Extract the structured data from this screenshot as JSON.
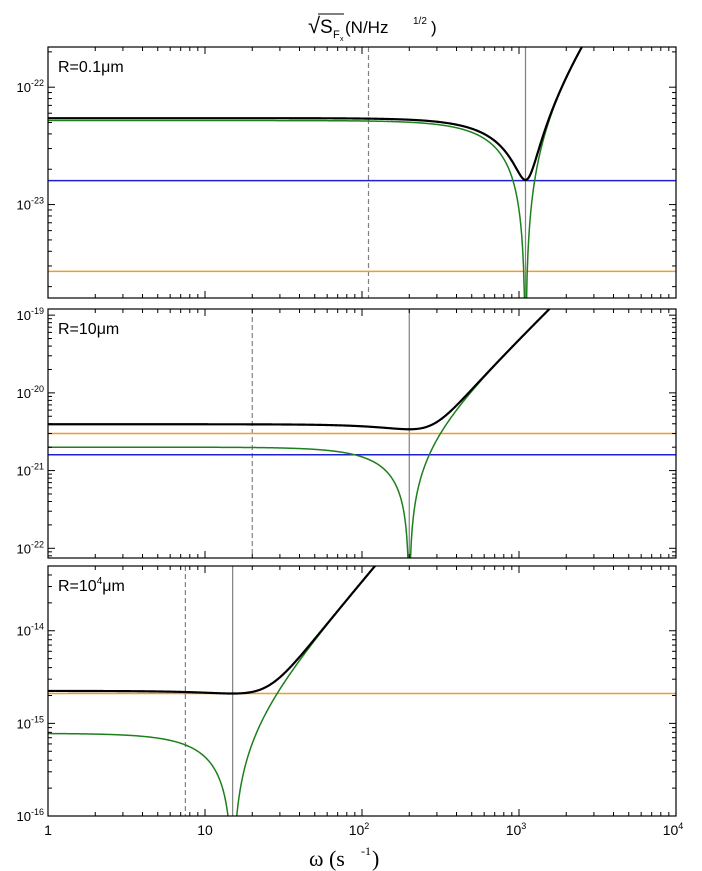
{
  "figure": {
    "title": {
      "root": "√",
      "main": "S",
      "sub": "F",
      "subsub": "x",
      "rest": " (N/Hz",
      "sup": "1/2",
      "close": ")"
    },
    "xlabel": {
      "main": "ω (s",
      "sup": "-1",
      "close": ")"
    },
    "x_ticks": [
      {
        "value": 1,
        "label": "1"
      },
      {
        "value": 10,
        "label": "10"
      },
      {
        "value": 100,
        "label": "10",
        "sup": "2"
      },
      {
        "value": 1000,
        "label": "10",
        "sup": "3"
      },
      {
        "value": 10000,
        "label": "10",
        "sup": "4"
      }
    ]
  },
  "chart_data": [
    {
      "type": "line",
      "panel_label": {
        "text": "R=0.1μm"
      },
      "xscale": "log",
      "yscale": "log",
      "xlim": [
        1,
        10000
      ],
      "ylim": [
        1.6e-24,
        2.2e-22
      ],
      "y_ticks": [
        {
          "value": 1e-22,
          "label": "10",
          "sup": "-22"
        },
        {
          "value": 1e-23,
          "label": "10",
          "sup": "-23"
        }
      ],
      "vlines": [
        {
          "x": 110,
          "style": "dashed",
          "color": "#808080"
        },
        {
          "x": 1100,
          "style": "solid",
          "color": "#808080"
        }
      ],
      "series": [
        {
          "color": "#1f1fd6",
          "kind": "hline",
          "y": 1.6e-23
        },
        {
          "color": "#f39a28",
          "kind": "hline",
          "y": 2.7e-24
        },
        {
          "color": "#1d7f1d",
          "kind": "resonance",
          "y0": 5.2e-23,
          "w0": 1100
        },
        {
          "color": "#000000",
          "kind": "total",
          "y0": 5.2e-23,
          "w0": 1100,
          "floor": 1.62e-23
        }
      ]
    },
    {
      "type": "line",
      "panel_label": {
        "text": "R=10μm"
      },
      "xscale": "log",
      "yscale": "log",
      "xlim": [
        1,
        10000
      ],
      "ylim": [
        7.5e-23,
        1.2e-19
      ],
      "y_ticks": [
        {
          "value": 1e-19,
          "label": "10",
          "sup": "-19"
        },
        {
          "value": 1e-20,
          "label": "10",
          "sup": "-20"
        },
        {
          "value": 1e-21,
          "label": "10",
          "sup": "-21"
        },
        {
          "value": 1e-22,
          "label": "10",
          "sup": "-22"
        }
      ],
      "vlines": [
        {
          "x": 20,
          "style": "dashed",
          "color": "#808080"
        },
        {
          "x": 200,
          "style": "solid",
          "color": "#808080"
        }
      ],
      "series": [
        {
          "color": "#f39a28",
          "kind": "hline",
          "y": 3e-21
        },
        {
          "color": "#1f1fd6",
          "kind": "hline",
          "y": 1.6e-21
        },
        {
          "color": "#1d7f1d",
          "kind": "resonance",
          "y0": 2e-21,
          "w0": 200
        },
        {
          "color": "#000000",
          "kind": "total",
          "y0": 2e-21,
          "w0": 200,
          "floor": 3.4e-21
        }
      ]
    },
    {
      "type": "line",
      "panel_label": {
        "text": "R=10",
        "sup": "4",
        "after": "μm"
      },
      "xscale": "log",
      "yscale": "log",
      "xlim": [
        1,
        10000
      ],
      "ylim": [
        1e-16,
        5e-14
      ],
      "y_ticks": [
        {
          "value": 1e-14,
          "label": "10",
          "sup": "-14"
        },
        {
          "value": 1e-15,
          "label": "10",
          "sup": "-15"
        },
        {
          "value": 1e-16,
          "label": "10",
          "sup": "-16"
        }
      ],
      "vlines": [
        {
          "x": 7.5,
          "style": "dashed",
          "color": "#808080"
        },
        {
          "x": 15,
          "style": "solid",
          "color": "#808080"
        }
      ],
      "series": [
        {
          "color": "#f39a28",
          "kind": "hline",
          "y": 2.1e-15
        },
        {
          "color": "#1d7f1d",
          "kind": "resonance",
          "y0": 7.8e-16,
          "w0": 15
        },
        {
          "color": "#000000",
          "kind": "total",
          "y0": 7.8e-16,
          "w0": 15,
          "floor": 2.1e-15
        }
      ]
    }
  ]
}
